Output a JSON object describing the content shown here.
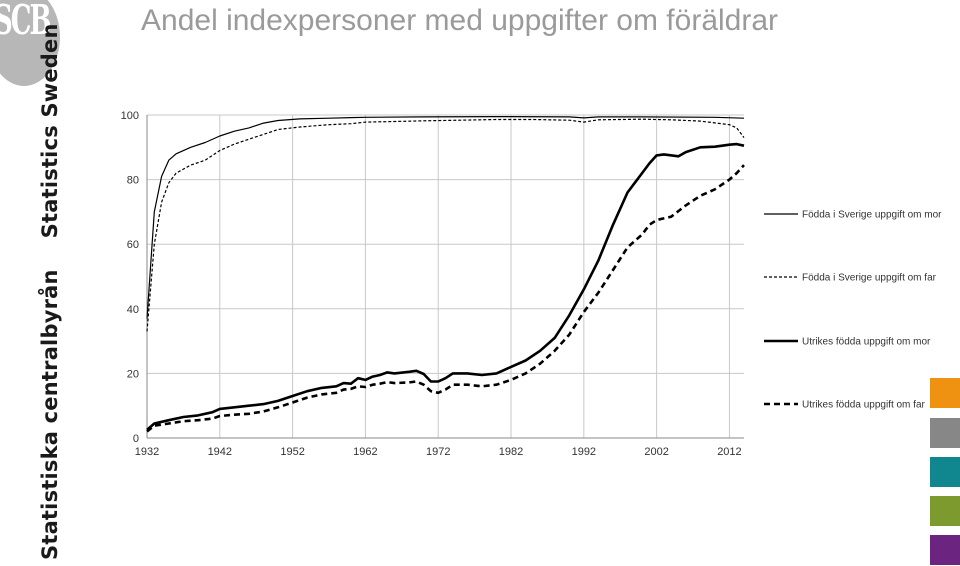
{
  "brand": {
    "logo_text": "SCB",
    "name_sv": "Statistiska centralbyrån",
    "name_en": "Statistics Sweden",
    "swatch_colors": [
      "#ef9211",
      "#878787",
      "#10868f",
      "#7c9a2e",
      "#6b2480"
    ]
  },
  "page": {
    "title": "Andel indexpersoner med uppgifter om föräldrar"
  },
  "chart_data": {
    "type": "line",
    "title": "",
    "xlabel": "",
    "ylabel": "",
    "xlim": [
      1932,
      2014
    ],
    "ylim": [
      0,
      100
    ],
    "x_ticks": [
      1932,
      1942,
      1952,
      1962,
      1972,
      1982,
      1992,
      2002,
      2012
    ],
    "y_ticks": [
      0,
      20,
      40,
      60,
      80,
      100
    ],
    "grid": true,
    "legend": "right",
    "series": [
      {
        "name": "Födda i Sverige uppgift om mor",
        "style": "thin-solid",
        "points": [
          [
            1932,
            37
          ],
          [
            1933,
            70
          ],
          [
            1934,
            81
          ],
          [
            1935,
            86
          ],
          [
            1936,
            88
          ],
          [
            1938,
            90
          ],
          [
            1940,
            91.5
          ],
          [
            1942,
            93.5
          ],
          [
            1944,
            95
          ],
          [
            1946,
            96
          ],
          [
            1948,
            97.5
          ],
          [
            1950,
            98.3
          ],
          [
            1953,
            98.8
          ],
          [
            1957,
            99
          ],
          [
            1960,
            99.2
          ],
          [
            1962,
            99.3
          ],
          [
            1970,
            99.4
          ],
          [
            1980,
            99.5
          ],
          [
            1990,
            99.4
          ],
          [
            1992,
            99.1
          ],
          [
            1994,
            99.4
          ],
          [
            2000,
            99.4
          ],
          [
            2010,
            99.3
          ],
          [
            2014,
            99
          ]
        ]
      },
      {
        "name": "Födda i Sverige uppgift om far",
        "style": "thin-dashed",
        "points": [
          [
            1932,
            33
          ],
          [
            1933,
            60
          ],
          [
            1934,
            73
          ],
          [
            1935,
            79
          ],
          [
            1936,
            82
          ],
          [
            1938,
            84.5
          ],
          [
            1940,
            86
          ],
          [
            1942,
            89
          ],
          [
            1944,
            91
          ],
          [
            1946,
            92.5
          ],
          [
            1948,
            94
          ],
          [
            1950,
            95.5
          ],
          [
            1953,
            96.3
          ],
          [
            1957,
            97
          ],
          [
            1960,
            97.3
          ],
          [
            1962,
            97.8
          ],
          [
            1966,
            98
          ],
          [
            1970,
            98.2
          ],
          [
            1975,
            98.4
          ],
          [
            1980,
            98.6
          ],
          [
            1985,
            98.6
          ],
          [
            1990,
            98.4
          ],
          [
            1992,
            97.8
          ],
          [
            1994,
            98.5
          ],
          [
            2000,
            98.7
          ],
          [
            2004,
            98.5
          ],
          [
            2008,
            98.1
          ],
          [
            2012,
            97
          ],
          [
            2013,
            96
          ],
          [
            2014,
            93
          ]
        ]
      },
      {
        "name": "Utrikes födda uppgift om mor",
        "style": "thick-solid",
        "points": [
          [
            1932,
            2.5
          ],
          [
            1933,
            4.5
          ],
          [
            1935,
            5.5
          ],
          [
            1937,
            6.5
          ],
          [
            1939,
            7
          ],
          [
            1941,
            8
          ],
          [
            1942,
            9
          ],
          [
            1944,
            9.5
          ],
          [
            1946,
            10
          ],
          [
            1948,
            10.5
          ],
          [
            1950,
            11.5
          ],
          [
            1952,
            13
          ],
          [
            1954,
            14.5
          ],
          [
            1956,
            15.5
          ],
          [
            1958,
            16
          ],
          [
            1959,
            17
          ],
          [
            1960,
            16.8
          ],
          [
            1961,
            18.5
          ],
          [
            1962,
            18
          ],
          [
            1963,
            19
          ],
          [
            1964,
            19.5
          ],
          [
            1965,
            20.3
          ],
          [
            1966,
            20
          ],
          [
            1968,
            20.5
          ],
          [
            1969,
            20.8
          ],
          [
            1970,
            19.8
          ],
          [
            1971,
            17.5
          ],
          [
            1972,
            17.5
          ],
          [
            1973,
            18.5
          ],
          [
            1974,
            20
          ],
          [
            1976,
            20
          ],
          [
            1978,
            19.5
          ],
          [
            1980,
            20
          ],
          [
            1982,
            22
          ],
          [
            1984,
            24
          ],
          [
            1986,
            27
          ],
          [
            1988,
            31
          ],
          [
            1990,
            38
          ],
          [
            1992,
            46
          ],
          [
            1994,
            55
          ],
          [
            1996,
            66
          ],
          [
            1998,
            76
          ],
          [
            2000,
            82
          ],
          [
            2001,
            85
          ],
          [
            2002,
            87.5
          ],
          [
            2003,
            87.8
          ],
          [
            2005,
            87.2
          ],
          [
            2006,
            88.5
          ],
          [
            2008,
            90
          ],
          [
            2010,
            90.2
          ],
          [
            2012,
            90.8
          ],
          [
            2013,
            91
          ],
          [
            2014,
            90.5
          ]
        ]
      },
      {
        "name": "Utrikes födda uppgift om far",
        "style": "thick-dashed",
        "points": [
          [
            1932,
            2
          ],
          [
            1933,
            3.8
          ],
          [
            1935,
            4.5
          ],
          [
            1937,
            5.2
          ],
          [
            1939,
            5.5
          ],
          [
            1941,
            6
          ],
          [
            1942,
            6.8
          ],
          [
            1944,
            7.2
          ],
          [
            1946,
            7.5
          ],
          [
            1948,
            8.2
          ],
          [
            1950,
            9.5
          ],
          [
            1952,
            11
          ],
          [
            1954,
            12.5
          ],
          [
            1956,
            13.5
          ],
          [
            1958,
            14
          ],
          [
            1959,
            15
          ],
          [
            1960,
            15.2
          ],
          [
            1961,
            16
          ],
          [
            1962,
            15.8
          ],
          [
            1963,
            16.5
          ],
          [
            1964,
            16.8
          ],
          [
            1965,
            17.3
          ],
          [
            1966,
            17
          ],
          [
            1968,
            17.2
          ],
          [
            1969,
            17.5
          ],
          [
            1970,
            16.5
          ],
          [
            1971,
            14.5
          ],
          [
            1972,
            14
          ],
          [
            1973,
            15
          ],
          [
            1974,
            16.5
          ],
          [
            1976,
            16.5
          ],
          [
            1978,
            16
          ],
          [
            1980,
            16.5
          ],
          [
            1982,
            18
          ],
          [
            1984,
            20
          ],
          [
            1986,
            23
          ],
          [
            1988,
            27
          ],
          [
            1990,
            32
          ],
          [
            1992,
            39
          ],
          [
            1994,
            45
          ],
          [
            1996,
            52
          ],
          [
            1998,
            59
          ],
          [
            2000,
            63
          ],
          [
            2001,
            66
          ],
          [
            2002,
            67.5
          ],
          [
            2004,
            68.5
          ],
          [
            2006,
            72
          ],
          [
            2008,
            75
          ],
          [
            2010,
            77
          ],
          [
            2012,
            80
          ],
          [
            2013,
            82
          ],
          [
            2014,
            84.5
          ]
        ]
      }
    ]
  }
}
